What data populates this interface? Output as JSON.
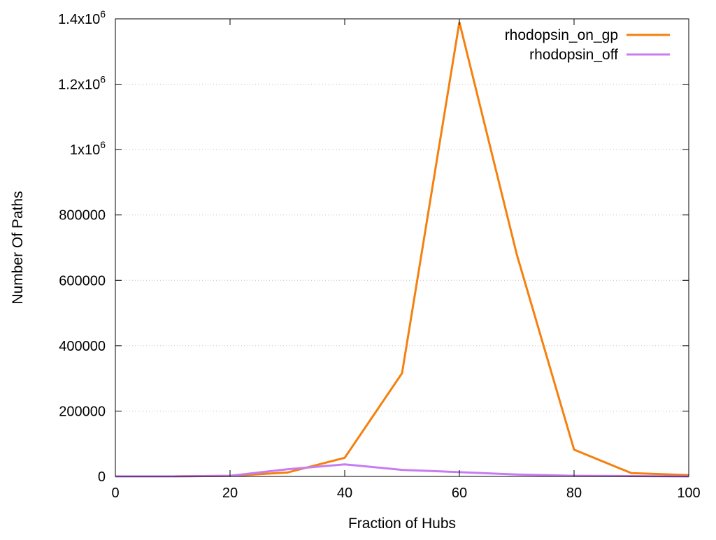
{
  "chart_data": {
    "type": "line",
    "title": "",
    "xlabel": "Fraction of Hubs",
    "ylabel": "Number Of Paths",
    "xlim": [
      0,
      100
    ],
    "ylim": [
      0,
      1400000
    ],
    "x_ticks": [
      0,
      20,
      40,
      60,
      80,
      100
    ],
    "y_ticks": [
      {
        "value": 0,
        "label": "0",
        "sup": ""
      },
      {
        "value": 200000,
        "label": "200000",
        "sup": ""
      },
      {
        "value": 400000,
        "label": "400000",
        "sup": ""
      },
      {
        "value": 600000,
        "label": "600000",
        "sup": ""
      },
      {
        "value": 800000,
        "label": "800000",
        "sup": ""
      },
      {
        "value": 1000000,
        "label": "1x10",
        "sup": "6"
      },
      {
        "value": 1200000,
        "label": "1.2x10",
        "sup": "6"
      },
      {
        "value": 1400000,
        "label": "1.4x10",
        "sup": "6"
      }
    ],
    "grid": true,
    "legend_position": "top-right",
    "x": [
      0,
      10,
      20,
      30,
      40,
      50,
      60,
      70,
      80,
      90,
      100
    ],
    "series": [
      {
        "name": "rhodopsin_on_gp",
        "color": "#f5800e",
        "values": [
          0,
          0,
          2000,
          12000,
          57000,
          316000,
          1390000,
          680000,
          82000,
          10000,
          4000
        ]
      },
      {
        "name": "rhodopsin_off",
        "color": "#c77cf2",
        "values": [
          0,
          0,
          2000,
          22000,
          37000,
          20000,
          13000,
          6000,
          2000,
          1000,
          0
        ]
      }
    ]
  }
}
